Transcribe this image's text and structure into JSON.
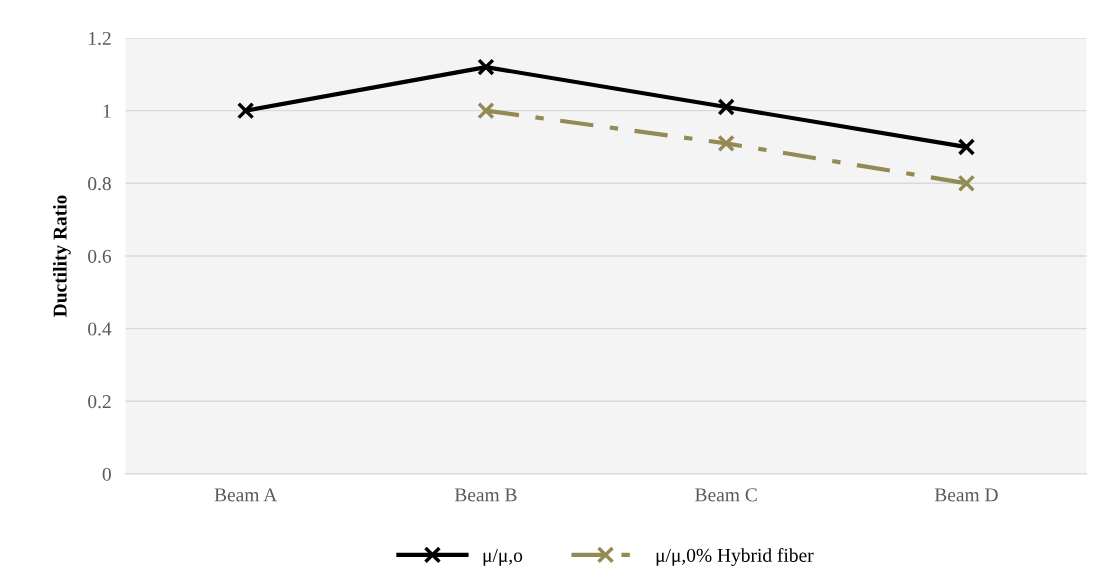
{
  "chart_data": {
    "type": "line",
    "ylabel": "Ductility Ratio",
    "categories": [
      "Beam A",
      "Beam B",
      "Beam C",
      "Beam D"
    ],
    "series": [
      {
        "name": "μ/μ,o",
        "color": "#000000",
        "values": [
          1,
          1.12,
          1.01,
          0.9
        ],
        "line_style": "solid"
      },
      {
        "name": "μ/μ,0% Hybrid fiber",
        "color": "#948a54",
        "values": [
          null,
          1,
          0.91,
          0.8
        ],
        "line_style": "dashed"
      }
    ],
    "ylim": [
      0,
      1.2
    ],
    "yticks": [
      0,
      0.2,
      0.4,
      0.6,
      0.8,
      1,
      1.2
    ],
    "grid": "y",
    "legend": "bottom",
    "marker": "cross"
  }
}
